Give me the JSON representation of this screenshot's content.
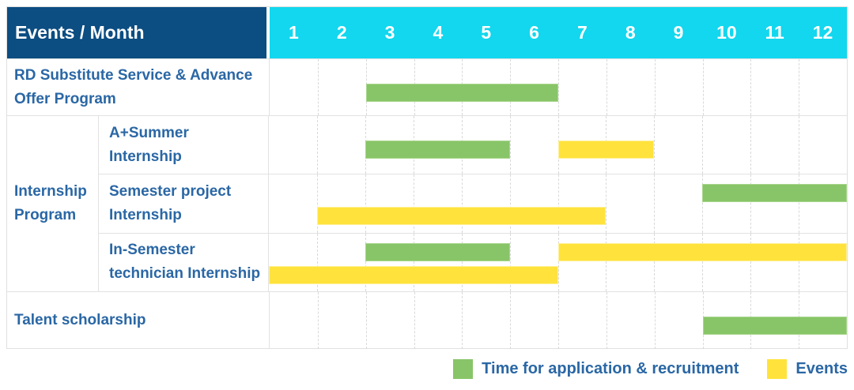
{
  "header": {
    "title": "Events / Month",
    "months": [
      "1",
      "2",
      "3",
      "4",
      "5",
      "6",
      "7",
      "8",
      "9",
      "10",
      "11",
      "12"
    ]
  },
  "colors": {
    "header_bg": "#0c4d82",
    "month_header_bg": "#12d7ee",
    "label_text": "#2a67a5",
    "application_green": "#88c568",
    "application_green_border": "#a8d68c",
    "events_yellow": "#ffe33c",
    "events_yellow_border": "#fff095",
    "grid": "#e2e2e2"
  },
  "chart_data": {
    "type": "bar",
    "subtype": "gantt-timeline",
    "title": "Events / Month",
    "x_unit": "month",
    "x_range": [
      1,
      12
    ],
    "grid": "on",
    "legend_position": "bottom-right",
    "row_groups": [
      {
        "label": "Internship Program",
        "row_indexes": [
          1,
          2,
          3
        ]
      }
    ],
    "rows": [
      {
        "label": "RD Substitute Service & Advance Offer Program",
        "group": null,
        "lanes": 1,
        "bars": [
          {
            "series": "application",
            "start_month": 3,
            "end_month": 6,
            "lane": 0
          }
        ]
      },
      {
        "label": "A+Summer Internship",
        "group": "Internship Program",
        "lanes": 1,
        "bars": [
          {
            "series": "application",
            "start_month": 3,
            "end_month": 5,
            "lane": 0
          },
          {
            "series": "events",
            "start_month": 7,
            "end_month": 8,
            "lane": 0
          }
        ]
      },
      {
        "label": "Semester project Internship",
        "group": "Internship Program",
        "lanes": 2,
        "bars": [
          {
            "series": "application",
            "start_month": 10,
            "end_month": 12,
            "lane": 0
          },
          {
            "series": "events",
            "start_month": 2,
            "end_month": 7,
            "lane": 1
          }
        ]
      },
      {
        "label": "In-Semester technician Internship",
        "group": "Internship Program",
        "lanes": 2,
        "bars": [
          {
            "series": "application",
            "start_month": 3,
            "end_month": 5,
            "lane": 0
          },
          {
            "series": "events",
            "start_month": 7,
            "end_month": 12,
            "lane": 0
          },
          {
            "series": "events",
            "start_month": 1,
            "end_month": 6,
            "lane": 1
          }
        ]
      },
      {
        "label": "Talent scholarship",
        "group": null,
        "lanes": 1,
        "bars": [
          {
            "series": "application",
            "start_month": 10,
            "end_month": 12,
            "lane": 0
          }
        ]
      }
    ],
    "series": [
      {
        "key": "application",
        "name": "Time for application & recruitment",
        "color": "#88c568"
      },
      {
        "key": "events",
        "name": "Events",
        "color": "#ffe33c"
      }
    ]
  }
}
